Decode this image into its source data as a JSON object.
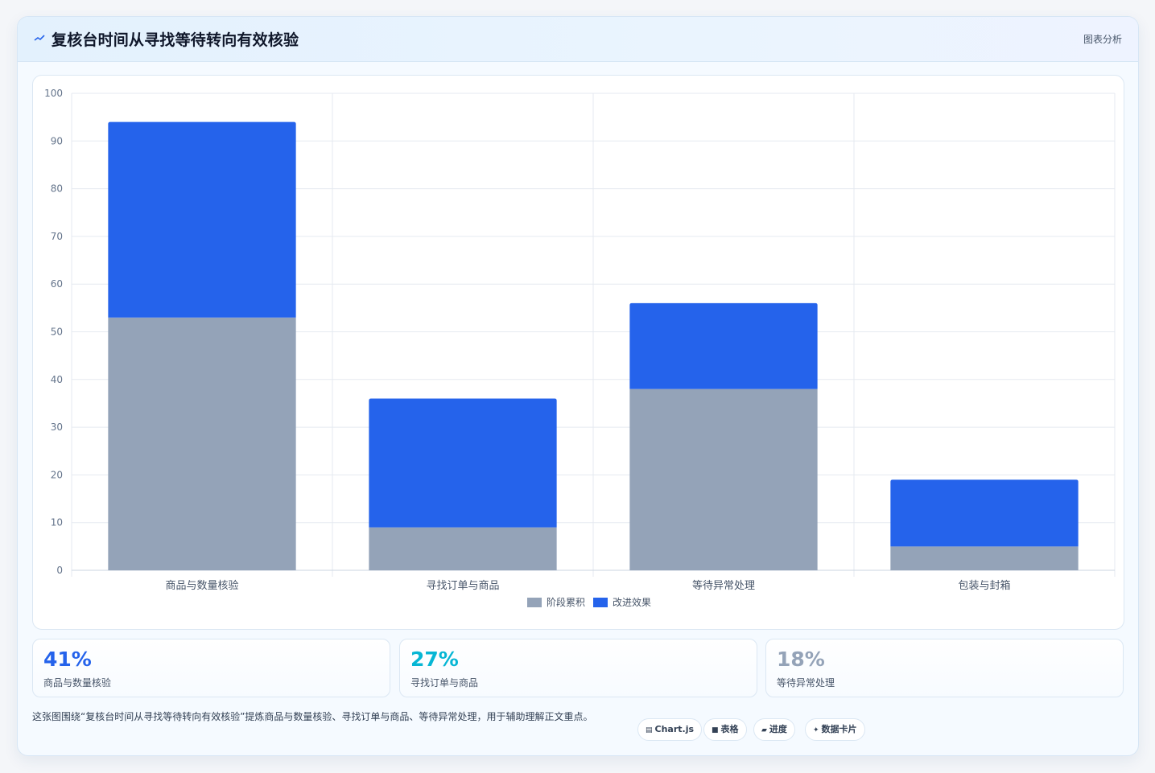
{
  "header": {
    "title": "复核台时间从寻找等待转向有效核验",
    "tag": "图表分析"
  },
  "chart_data": {
    "type": "bar",
    "stacked": true,
    "categories": [
      "商品与数量核验",
      "寻找订单与商品",
      "等待异常处理",
      "包装与封箱"
    ],
    "series": [
      {
        "name": "阶段累积",
        "color": "#94a3b8",
        "values": [
          53,
          9,
          38,
          5
        ]
      },
      {
        "name": "改进效果",
        "color": "#2563eb",
        "values": [
          41,
          27,
          18,
          14
        ]
      }
    ],
    "ylim": [
      0,
      100
    ],
    "yticks": [
      0,
      10,
      20,
      30,
      40,
      50,
      60,
      70,
      80,
      90,
      100
    ],
    "grid": true,
    "legend": "bottom"
  },
  "stats": [
    {
      "value": "41%",
      "label": "商品与数量核验",
      "color": "#2563eb"
    },
    {
      "value": "27%",
      "label": "寻找订单与商品",
      "color": "#06b6d4"
    },
    {
      "value": "18%",
      "label": "等待异常处理",
      "color": "#94a3b8"
    }
  ],
  "note": "这张图围绕“复核台时间从寻找等待转向有效核验”提炼商品与数量核验、寻找订单与商品、等待异常处理，用于辅助理解正文重点。",
  "pills": [
    {
      "icon": "▤",
      "label": "Chart.js",
      "icon_name": "chart-icon"
    },
    {
      "icon": "■",
      "label": "表格",
      "icon_name": "table-icon"
    },
    {
      "icon": "▰",
      "label": "进度",
      "icon_name": "progress-icon"
    },
    {
      "icon": "✦",
      "label": "数据卡片",
      "icon_name": "sparkle-icon"
    }
  ]
}
